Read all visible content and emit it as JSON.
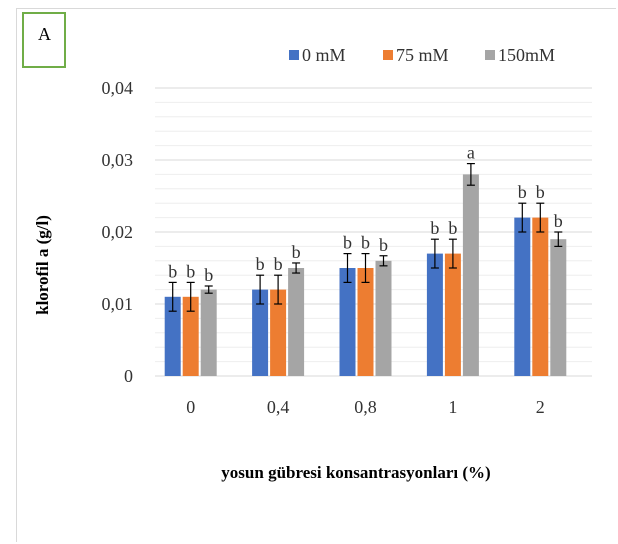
{
  "panel_label": "A",
  "chart_data": {
    "type": "bar",
    "title": "",
    "xlabel": "yosun gübresi konsantrasyonları (%)",
    "ylabel": "klorofil a (g/l)",
    "categories": [
      "0",
      "0,4",
      "0,8",
      "1",
      "2"
    ],
    "ylim": [
      0,
      0.04
    ],
    "yticks": [
      {
        "value": 0,
        "label": "0"
      },
      {
        "value": 0.01,
        "label": "0,01"
      },
      {
        "value": 0.02,
        "label": "0,02"
      },
      {
        "value": 0.03,
        "label": "0,03"
      },
      {
        "value": 0.04,
        "label": "0,04"
      }
    ],
    "grid": true,
    "legend_position": "top-right",
    "series": [
      {
        "name": "0 mM",
        "color": "#4472c4",
        "values": [
          0.011,
          0.012,
          0.015,
          0.017,
          0.022
        ],
        "errors": [
          0.002,
          0.002,
          0.002,
          0.002,
          0.002
        ],
        "letters": [
          "b",
          "b",
          "b",
          "b",
          "b"
        ]
      },
      {
        "name": "75 mM",
        "color": "#ed7d31",
        "values": [
          0.011,
          0.012,
          0.015,
          0.017,
          0.022
        ],
        "errors": [
          0.002,
          0.002,
          0.002,
          0.002,
          0.002
        ],
        "letters": [
          "b",
          "b",
          "b",
          "b",
          "b"
        ]
      },
      {
        "name": "150mM",
        "color": "#a5a5a5",
        "values": [
          0.012,
          0.015,
          0.016,
          0.028,
          0.019
        ],
        "errors": [
          0.0005,
          0.0007,
          0.0007,
          0.0015,
          0.001
        ],
        "letters": [
          "b",
          "b",
          "b",
          "a",
          "b"
        ]
      }
    ]
  }
}
